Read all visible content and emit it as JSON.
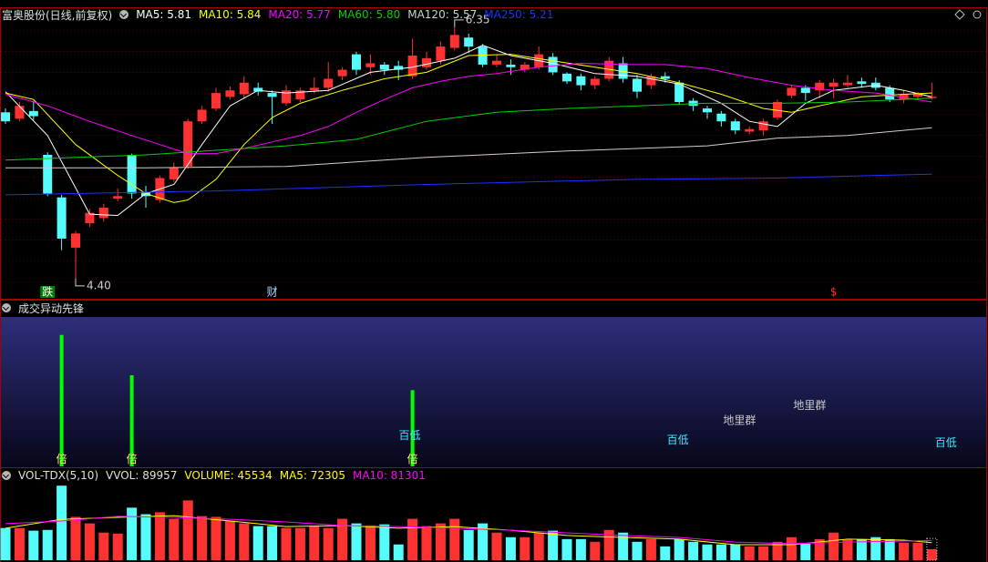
{
  "chart_data": [
    {
      "type": "candlestick",
      "title": "富奥股份(日线,前复权)",
      "ylim": [
        4.3,
        6.42
      ],
      "up_color": "#ff3232",
      "down_color": "#54fcfc",
      "grid": true,
      "open": [
        5.69,
        5.64,
        5.7,
        5.36,
        5.03,
        4.64,
        4.83,
        4.87,
        5.02,
        5.36,
        5.07,
        5.01,
        5.17,
        5.27,
        5.62,
        5.72,
        5.81,
        5.83,
        5.88,
        5.84,
        5.76,
        5.79,
        5.86,
        5.88,
        5.97,
        6.14,
        6.04,
        6.06,
        6.05,
        5.97,
        6.04,
        6.09,
        6.19,
        6.27,
        6.2,
        6.06,
        6.06,
        6.02,
        6.04,
        6.12,
        5.99,
        5.97,
        5.9,
        5.95,
        6.07,
        5.95,
        5.9,
        5.97,
        5.92,
        5.78,
        5.72,
        5.68,
        5.62,
        5.54,
        5.55,
        5.65,
        5.82,
        5.88,
        5.86,
        5.89,
        5.9,
        5.93,
        5.92,
        5.88,
        5.79,
        5.81,
        5.8
      ],
      "high": [
        5.72,
        5.77,
        5.78,
        5.38,
        5.05,
        4.77,
        4.94,
        4.98,
        5.1,
        5.37,
        5.12,
        5.2,
        5.3,
        5.64,
        5.74,
        5.88,
        5.89,
        5.97,
        5.92,
        5.86,
        5.9,
        5.88,
        5.96,
        6.08,
        6.04,
        6.16,
        6.14,
        6.08,
        6.09,
        6.26,
        6.16,
        6.24,
        6.35,
        6.3,
        6.22,
        6.14,
        6.1,
        6.08,
        6.2,
        6.15,
        6.0,
        5.99,
        5.97,
        6.12,
        6.12,
        5.98,
        5.99,
        6.0,
        5.94,
        5.8,
        5.74,
        5.7,
        5.64,
        5.58,
        5.64,
        5.79,
        5.9,
        5.9,
        5.94,
        5.95,
        5.98,
        5.96,
        5.96,
        5.9,
        5.86,
        5.85,
        5.92
      ],
      "low": [
        5.6,
        5.62,
        5.63,
        5.04,
        4.62,
        4.4,
        4.8,
        4.84,
        5.0,
        5.02,
        4.95,
        4.99,
        5.15,
        5.25,
        5.6,
        5.7,
        5.79,
        5.8,
        5.82,
        5.6,
        5.74,
        5.77,
        5.84,
        5.85,
        5.94,
        5.98,
        5.98,
        5.98,
        5.94,
        5.95,
        6.02,
        6.06,
        6.17,
        6.15,
        6.04,
        6.04,
        5.98,
        6.0,
        6.02,
        5.98,
        5.91,
        5.86,
        5.87,
        5.93,
        5.92,
        5.8,
        5.87,
        5.92,
        5.75,
        5.7,
        5.64,
        5.58,
        5.52,
        5.52,
        5.51,
        5.63,
        5.8,
        5.78,
        5.8,
        5.8,
        5.88,
        5.88,
        5.86,
        5.77,
        5.76,
        5.79,
        5.79
      ],
      "close": [
        5.62,
        5.74,
        5.66,
        5.06,
        4.71,
        4.75,
        4.91,
        4.95,
        5.04,
        5.06,
        5.04,
        5.18,
        5.26,
        5.62,
        5.71,
        5.84,
        5.86,
        5.92,
        5.85,
        5.81,
        5.86,
        5.86,
        5.88,
        5.95,
        6.02,
        6.02,
        6.07,
        6.02,
        6.02,
        6.13,
        6.11,
        6.2,
        6.29,
        6.2,
        6.06,
        6.09,
        6.04,
        6.06,
        6.14,
        6.0,
        5.93,
        5.9,
        5.95,
        6.09,
        5.95,
        5.85,
        5.97,
        5.95,
        5.77,
        5.74,
        5.69,
        5.62,
        5.55,
        5.56,
        5.62,
        5.77,
        5.88,
        5.84,
        5.92,
        5.92,
        5.92,
        5.91,
        5.88,
        5.79,
        5.83,
        5.83,
        5.81
      ],
      "series": [
        {
          "name": "MA5",
          "color": "#ffffff",
          "x": [
            0,
            3,
            6,
            8,
            10,
            12,
            14,
            16,
            18,
            20,
            23,
            26,
            29,
            32,
            34,
            36,
            39,
            42,
            45,
            48,
            51,
            53,
            55,
            57,
            59,
            62,
            64,
            66
          ],
          "values": [
            5.85,
            5.51,
            4.9,
            4.89,
            5.06,
            5.13,
            5.44,
            5.74,
            5.86,
            5.84,
            5.86,
            6.0,
            6.04,
            6.11,
            6.21,
            6.13,
            6.07,
            5.99,
            5.97,
            5.91,
            5.76,
            5.62,
            5.58,
            5.76,
            5.86,
            5.9,
            5.86,
            5.81
          ]
        },
        {
          "name": "MA10",
          "color": "#ffff00",
          "x": [
            0,
            2,
            5,
            8,
            10,
            12,
            13,
            15,
            17,
            19,
            21,
            24,
            27,
            30,
            33,
            36,
            39,
            42,
            45,
            48,
            51,
            54,
            56,
            58,
            61,
            64,
            66
          ],
          "values": [
            5.84,
            5.79,
            5.44,
            5.2,
            5.06,
            4.99,
            5.01,
            5.17,
            5.44,
            5.65,
            5.76,
            5.86,
            5.95,
            6.0,
            6.13,
            6.14,
            6.09,
            6.04,
            5.99,
            5.92,
            5.83,
            5.72,
            5.69,
            5.74,
            5.81,
            5.83,
            5.84
          ]
        },
        {
          "name": "MA20",
          "color": "#ff00ff",
          "x": [
            0,
            3,
            6,
            9,
            11,
            13,
            15,
            17,
            19,
            21,
            23,
            25,
            27,
            29,
            31,
            33,
            35,
            38,
            41,
            44,
            47,
            50,
            53,
            56,
            59,
            62,
            66
          ],
          "values": [
            5.83,
            5.74,
            5.62,
            5.51,
            5.44,
            5.37,
            5.37,
            5.41,
            5.46,
            5.51,
            5.58,
            5.69,
            5.79,
            5.88,
            5.93,
            5.97,
            5.99,
            6.04,
            6.07,
            6.06,
            6.06,
            6.03,
            5.96,
            5.9,
            5.86,
            5.84,
            5.77
          ]
        },
        {
          "name": "MA60",
          "color": "#00d000",
          "x": [
            0,
            10,
            20,
            25,
            30,
            35,
            40,
            45,
            50,
            55,
            60,
            66
          ],
          "values": [
            5.32,
            5.36,
            5.43,
            5.48,
            5.62,
            5.69,
            5.72,
            5.74,
            5.76,
            5.76,
            5.77,
            5.8
          ],
          "value_labels": [
            null,
            null,
            null,
            null,
            null,
            null,
            null,
            null,
            null,
            null,
            null,
            "5.80"
          ]
        },
        {
          "name": "MA120",
          "color": "#d0d0d0",
          "x": [
            0,
            10,
            20,
            30,
            40,
            50,
            55,
            60,
            66
          ],
          "values": [
            5.26,
            5.26,
            5.27,
            5.34,
            5.39,
            5.43,
            5.49,
            5.51,
            5.57
          ]
        },
        {
          "name": "MA250",
          "color": "#2030ff",
          "x": [
            0,
            15,
            30,
            45,
            55,
            62,
            66
          ],
          "values": [
            5.05,
            5.08,
            5.13,
            5.17,
            5.18,
            5.2,
            5.21
          ]
        }
      ],
      "extremes": [
        {
          "x": 32,
          "value": 6.35
        },
        {
          "x": 5,
          "value": 4.4,
          "label": "4.40"
        }
      ],
      "annotations": [
        {
          "text": "跌",
          "x": 3,
          "color": "#ffffff",
          "background": "#008000"
        },
        {
          "text": "财",
          "x": 19,
          "color": "#b0d8ff"
        },
        {
          "text": "$",
          "x": 59,
          "color": "#ff3030"
        }
      ]
    },
    {
      "type": "bar",
      "title": "成交异动先锋",
      "ylim": [
        0,
        100
      ],
      "color": "#00ff00",
      "x": [
        4,
        9,
        29
      ],
      "values": [
        88,
        61,
        51
      ],
      "annotations": [
        {
          "text": "倍",
          "x": 4,
          "y": 2,
          "color": "#ffff60"
        },
        {
          "text": "倍",
          "x": 9,
          "y": 2,
          "color": "#ffff60"
        },
        {
          "text": "倍",
          "x": 29,
          "y": 2,
          "color": "#ffff60"
        },
        {
          "text": "百低",
          "x": 28.8,
          "y": 18,
          "color": "#40e8f8"
        },
        {
          "text": "百低",
          "x": 47.9,
          "y": 15,
          "color": "#40e8f8"
        },
        {
          "text": "百低",
          "x": 67,
          "y": 13,
          "color": "#40e8f8"
        },
        {
          "text": "地里群",
          "x": 52.3,
          "y": 28,
          "color": "#c8c8c8"
        },
        {
          "text": "地里群",
          "x": 57.3,
          "y": 38,
          "color": "#c8c8c8"
        }
      ]
    },
    {
      "type": "volume",
      "title": "VOL-TDX(5,10)",
      "name": "VOLUME",
      "ylim": [
        0,
        320000
      ],
      "values": [
        133000,
        133000,
        122000,
        125000,
        308000,
        179000,
        152000,
        114000,
        110000,
        217000,
        190000,
        198000,
        171000,
        247000,
        182000,
        179000,
        163000,
        152000,
        141000,
        141000,
        133000,
        133000,
        141000,
        133000,
        171000,
        152000,
        144000,
        148000,
        65000,
        171000,
        141000,
        152000,
        171000,
        125000,
        152000,
        114000,
        95000,
        95000,
        114000,
        122000,
        87000,
        87000,
        76000,
        125000,
        114000,
        76000,
        87000,
        57000,
        87000,
        76000,
        65000,
        65000,
        65000,
        57000,
        57000,
        76000,
        95000,
        68000,
        87000,
        114000,
        84000,
        87000,
        95000,
        87000,
        72000,
        72000,
        45534
      ],
      "vvol": {
        "name": "VVOL",
        "value": 89957
      },
      "series": [
        {
          "name": "MA5",
          "color": "#ffff00",
          "x": [
            0,
            4,
            8,
            12,
            16,
            20,
            24,
            28,
            32,
            36,
            40,
            44,
            48,
            52,
            56,
            60,
            64,
            66
          ],
          "values": [
            132000,
            169000,
            177000,
            184000,
            162000,
            139000,
            143000,
            132000,
            139000,
            124000,
            102000,
            94000,
            87000,
            64000,
            64000,
            87000,
            83000,
            72305
          ]
        },
        {
          "name": "MA10",
          "color": "#ff00ff",
          "x": [
            0,
            4,
            8,
            12,
            16,
            20,
            24,
            28,
            32,
            36,
            40,
            44,
            48,
            52,
            56,
            60,
            64,
            66
          ],
          "values": [
            151000,
            162000,
            181000,
            177000,
            169000,
            158000,
            143000,
            139000,
            132000,
            124000,
            113000,
            102000,
            94000,
            75000,
            68000,
            75000,
            79000,
            81301
          ]
        }
      ]
    }
  ]
}
